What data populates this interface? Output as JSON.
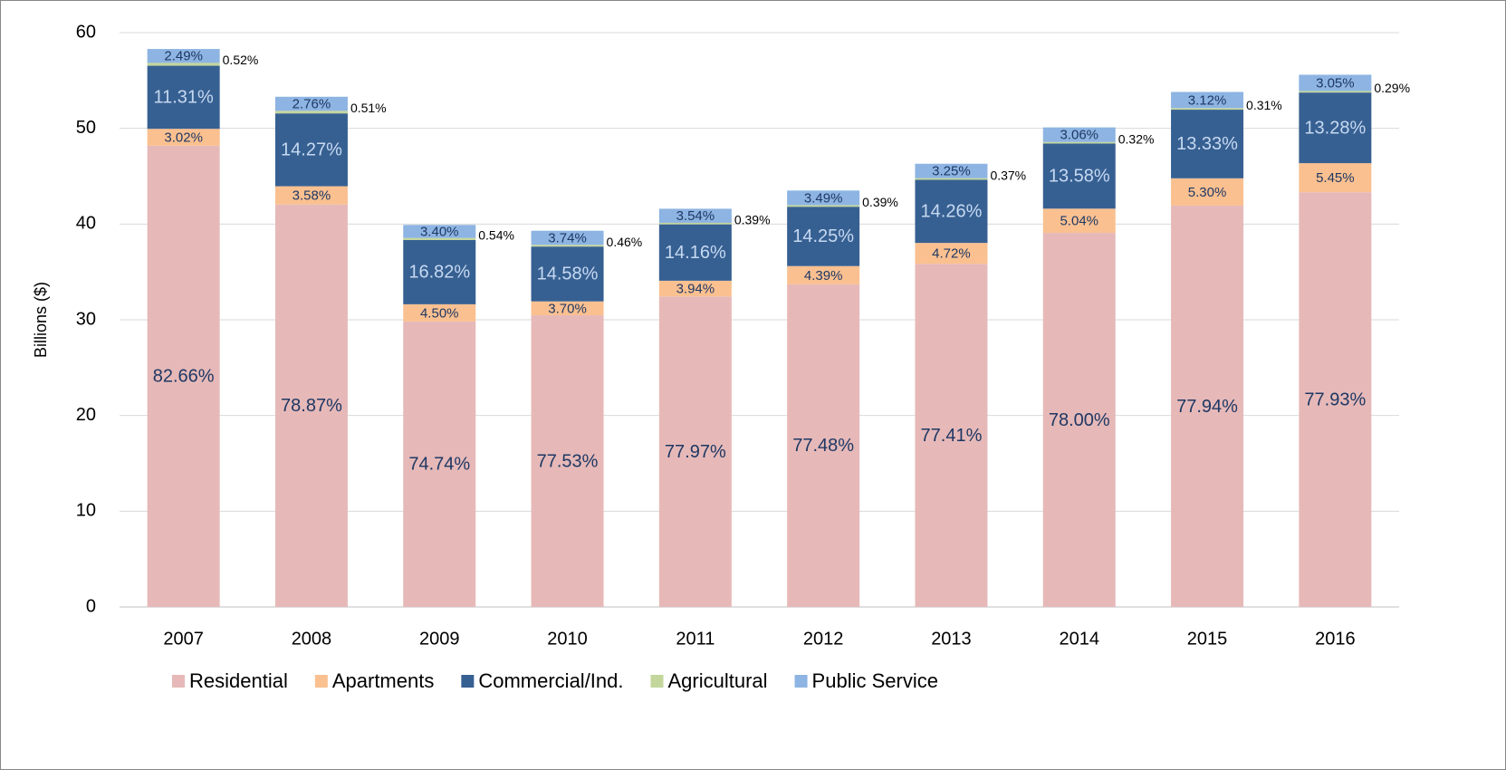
{
  "chart_data": {
    "type": "stacked_bar",
    "y_label": "Billions ($)",
    "categories": [
      "2007",
      "2008",
      "2009",
      "2010",
      "2011",
      "2012",
      "2013",
      "2014",
      "2015",
      "2016"
    ],
    "ylim": [
      0,
      60
    ],
    "yticks": [
      0,
      10,
      20,
      30,
      40,
      50,
      60
    ],
    "grid": true,
    "legend": "bottom",
    "series": [
      {
        "name": "Residential",
        "color": "#e6b9b8",
        "label_color": "#1f3864",
        "values": [
          48.19,
          42.04,
          29.82,
          30.47,
          32.44,
          33.7,
          35.84,
          39.08,
          41.93,
          43.33
        ],
        "labels": [
          "82.66%",
          "78.87%",
          "74.74%",
          "77.53%",
          "77.97%",
          "77.48%",
          "77.41%",
          "78.00%",
          "77.94%",
          "77.93%"
        ]
      },
      {
        "name": "Apartments",
        "color": "#fac090",
        "label_color": "#1f3864",
        "values": [
          1.76,
          1.91,
          1.8,
          1.45,
          1.64,
          1.91,
          2.19,
          2.53,
          2.85,
          3.03
        ],
        "labels": [
          "3.02%",
          "3.58%",
          "4.50%",
          "3.70%",
          "3.94%",
          "4.39%",
          "4.72%",
          "5.04%",
          "5.30%",
          "5.45%"
        ]
      },
      {
        "name": "Commercial/Ind.",
        "color": "#376092",
        "label_color": "#c6d9f1",
        "values": [
          6.59,
          7.61,
          6.71,
          5.73,
          5.89,
          6.2,
          6.6,
          6.8,
          7.17,
          7.38
        ],
        "labels": [
          "11.31%",
          "14.27%",
          "16.82%",
          "14.58%",
          "14.16%",
          "14.25%",
          "14.26%",
          "13.58%",
          "13.33%",
          "13.28%"
        ]
      },
      {
        "name": "Agricultural",
        "color": "#c3d69b",
        "label_color": "#000000",
        "values": [
          0.3,
          0.27,
          0.22,
          0.18,
          0.16,
          0.17,
          0.17,
          0.16,
          0.17,
          0.16
        ],
        "labels": [
          "0.52%",
          "0.51%",
          "0.54%",
          "0.46%",
          "0.39%",
          "0.39%",
          "0.37%",
          "0.32%",
          "0.31%",
          "0.29%"
        ]
      },
      {
        "name": "Public Service",
        "color": "#8db4e2",
        "label_color": "#1f3864",
        "values": [
          1.45,
          1.47,
          1.36,
          1.47,
          1.47,
          1.52,
          1.5,
          1.53,
          1.68,
          1.7
        ],
        "labels": [
          "2.49%",
          "2.76%",
          "3.40%",
          "3.74%",
          "3.54%",
          "3.49%",
          "3.25%",
          "3.06%",
          "3.12%",
          "3.05%"
        ]
      }
    ]
  }
}
